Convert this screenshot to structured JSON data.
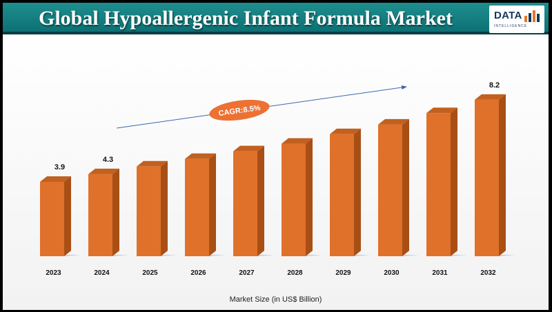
{
  "title": "Global Hypoallergenic Infant Formula Market",
  "logo": {
    "word": "DATA",
    "subtitle": "INTELLIGENCE"
  },
  "colors": {
    "header": "#127c80",
    "bar_front": "#e0712a",
    "bar_side": "#a84f16",
    "bar_top": "#c2601f",
    "cagr_ellipse": "#ec7133"
  },
  "annotation": {
    "cagr_label": "CAGR:8.5%"
  },
  "chart_data": {
    "type": "bar",
    "title": "Global Hypoallergenic Infant Formula Market",
    "xlabel": "Market Size (in US$ Billion)",
    "ylabel": "",
    "categories": [
      "2023",
      "2024",
      "2025",
      "2026",
      "2027",
      "2028",
      "2029",
      "2030",
      "2031",
      "2032"
    ],
    "values": [
      3.9,
      4.3,
      4.7,
      5.1,
      5.5,
      5.9,
      6.4,
      6.9,
      7.5,
      8.2
    ],
    "data_labels": {
      "2023": "3.9",
      "2024": "4.3",
      "2032": "8.2"
    },
    "ylim": [
      0,
      10
    ],
    "grid": false,
    "legend": "none"
  }
}
